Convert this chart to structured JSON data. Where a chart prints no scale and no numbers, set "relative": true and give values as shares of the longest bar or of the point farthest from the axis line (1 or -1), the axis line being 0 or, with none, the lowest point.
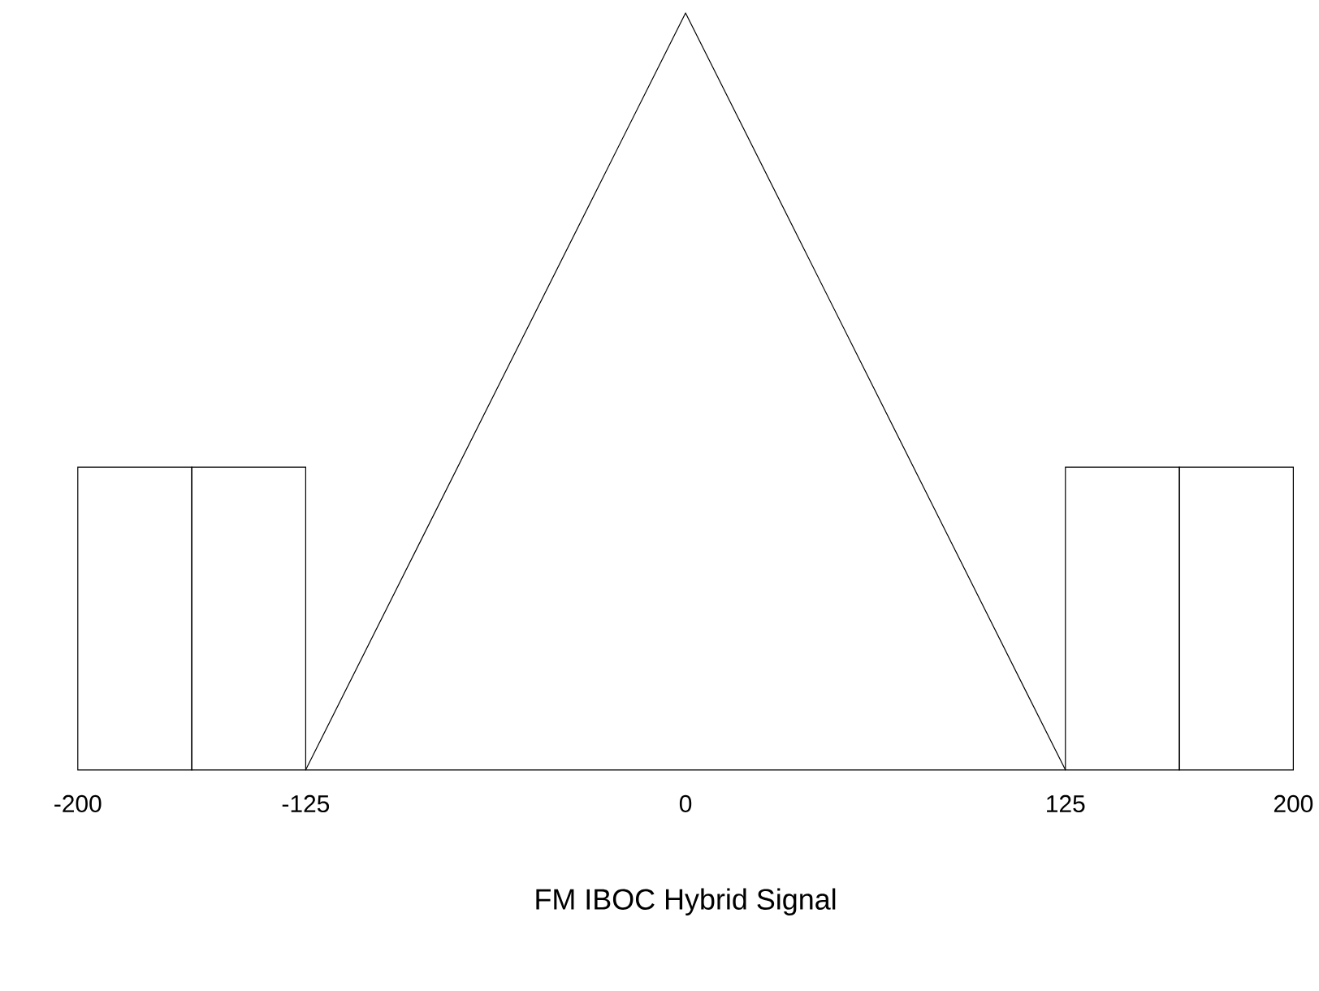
{
  "chart_data": {
    "type": "histogram",
    "xlabel": "FM IBOC Hybrid Signal",
    "relative": true,
    "xlim": [
      -200,
      200
    ],
    "xticks": [
      -200,
      -125,
      0,
      125,
      200
    ],
    "bins": [
      -200,
      -162.5,
      -125,
      125,
      162.5,
      200
    ],
    "values": [
      0.4,
      0.4,
      null,
      0.4,
      0.4
    ],
    "color": "#000000",
    "series": [
      {
        "type": "line",
        "color": "#000000",
        "x": [
          -125,
          0,
          125
        ],
        "values": [
          0,
          1,
          0
        ]
      },
      {
        "type": "line",
        "color": "#000000",
        "x": [
          -125,
          125
        ],
        "values": [
          0,
          0
        ]
      }
    ]
  }
}
